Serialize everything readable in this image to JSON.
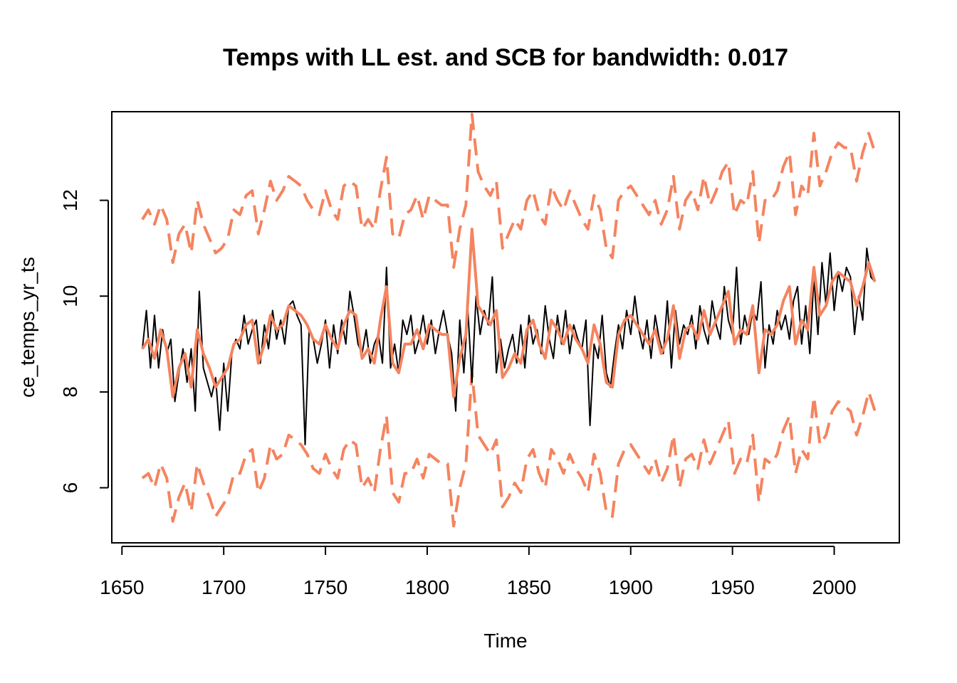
{
  "chart_data": {
    "type": "line",
    "title": "Temps with LL est. and SCB for bandwidth: 0.017",
    "xlabel": "Time",
    "ylabel": "ce_temps_yr_ts",
    "xlim": [
      1645,
      2032
    ],
    "ylim": [
      4.85,
      13.85
    ],
    "x_ticks": [
      1650,
      1700,
      1750,
      1800,
      1850,
      1900,
      1950,
      2000
    ],
    "y_ticks": [
      6,
      8,
      10,
      12
    ],
    "grid": false,
    "legend": "none",
    "colors": {
      "observed": "#000000",
      "estimate": "#f4845f",
      "band": "#f4845f"
    },
    "series": [
      {
        "role": "observed",
        "style": "solid-thin",
        "x": [
          1660,
          1662,
          1664,
          1666,
          1668,
          1670,
          1672,
          1674,
          1676,
          1678,
          1680,
          1682,
          1684,
          1686,
          1688,
          1690,
          1692,
          1694,
          1696,
          1698,
          1700,
          1702,
          1704,
          1706,
          1708,
          1710,
          1712,
          1714,
          1716,
          1718,
          1720,
          1722,
          1724,
          1726,
          1728,
          1730,
          1732,
          1734,
          1736,
          1738,
          1740,
          1742,
          1744,
          1746,
          1748,
          1750,
          1752,
          1754,
          1756,
          1758,
          1760,
          1762,
          1764,
          1766,
          1768,
          1770,
          1772,
          1774,
          1776,
          1778,
          1780,
          1782,
          1784,
          1786,
          1788,
          1790,
          1792,
          1794,
          1796,
          1798,
          1800,
          1802,
          1804,
          1806,
          1808,
          1810,
          1812,
          1814,
          1816,
          1818,
          1820,
          1822,
          1824,
          1826,
          1828,
          1830,
          1832,
          1834,
          1836,
          1838,
          1840,
          1842,
          1844,
          1846,
          1848,
          1850,
          1852,
          1854,
          1856,
          1858,
          1860,
          1862,
          1864,
          1866,
          1868,
          1870,
          1872,
          1874,
          1876,
          1878,
          1880,
          1882,
          1884,
          1886,
          1888,
          1890,
          1892,
          1894,
          1896,
          1898,
          1900,
          1902,
          1904,
          1906,
          1908,
          1910,
          1912,
          1914,
          1916,
          1918,
          1920,
          1922,
          1924,
          1926,
          1928,
          1930,
          1932,
          1934,
          1936,
          1938,
          1940,
          1942,
          1944,
          1946,
          1948,
          1950,
          1952,
          1954,
          1956,
          1958,
          1960,
          1962,
          1964,
          1966,
          1968,
          1970,
          1972,
          1974,
          1976,
          1978,
          1980,
          1982,
          1984,
          1986,
          1988,
          1990,
          1992,
          1994,
          1996,
          1998,
          2000,
          2002,
          2004,
          2006,
          2008,
          2010,
          2012,
          2014,
          2016,
          2018,
          2020
        ],
        "y": [
          8.9,
          9.7,
          8.5,
          9.6,
          8.5,
          9.3,
          8.8,
          9.1,
          7.8,
          8.4,
          8.9,
          8.2,
          8.9,
          7.6,
          10.1,
          8.5,
          8.2,
          7.9,
          8.3,
          7.2,
          8.6,
          7.6,
          8.8,
          9.1,
          8.9,
          9.6,
          9.0,
          9.3,
          9.5,
          8.6,
          9.4,
          8.9,
          9.7,
          9.1,
          9.5,
          9.0,
          9.8,
          9.9,
          9.6,
          9.4,
          6.9,
          9.3,
          9.1,
          8.6,
          9.0,
          9.5,
          8.5,
          9.4,
          8.8,
          9.5,
          9.0,
          10.1,
          9.6,
          9.0,
          8.8,
          9.3,
          8.6,
          9.0,
          9.2,
          8.6,
          10.6,
          8.5,
          9.0,
          8.4,
          9.5,
          9.2,
          9.6,
          8.8,
          9.1,
          9.6,
          9.0,
          9.5,
          8.8,
          9.3,
          9.7,
          9.2,
          8.8,
          7.6,
          9.5,
          8.4,
          9.7,
          8.2,
          10.0,
          9.2,
          9.7,
          9.4,
          10.4,
          8.4,
          9.1,
          8.5,
          8.9,
          9.2,
          8.6,
          9.4,
          8.5,
          9.6,
          9.0,
          9.3,
          8.8,
          9.8,
          9.1,
          8.7,
          9.6,
          9.0,
          9.7,
          8.8,
          9.4,
          9.1,
          8.9,
          9.5,
          7.3,
          9.0,
          8.7,
          9.6,
          8.4,
          8.1,
          8.8,
          9.4,
          8.9,
          9.7,
          9.2,
          10.0,
          9.3,
          8.9,
          9.5,
          8.7,
          9.6,
          9.1,
          8.8,
          9.9,
          8.5,
          9.7,
          9.0,
          9.4,
          9.2,
          9.6,
          8.9,
          9.8,
          9.3,
          9.0,
          9.9,
          9.4,
          9.1,
          10.2,
          9.5,
          9.2,
          10.6,
          9.0,
          9.6,
          9.2,
          9.7,
          9.5,
          10.3,
          8.5,
          9.4,
          9.0,
          9.7,
          9.3,
          9.6,
          9.1,
          9.9,
          10.2,
          9.0,
          9.8,
          8.8,
          10.4,
          9.2,
          10.7,
          9.8,
          10.9,
          9.7,
          10.5,
          10.1,
          10.6,
          10.4,
          9.2,
          10.0,
          9.5,
          11.0,
          10.4,
          10.3
        ],
        "stroke_width": 2
      },
      {
        "role": "estimate",
        "style": "solid-thick",
        "x": [
          1660,
          1663,
          1666,
          1669,
          1672,
          1675,
          1678,
          1681,
          1684,
          1687,
          1690,
          1693,
          1696,
          1699,
          1702,
          1705,
          1708,
          1711,
          1714,
          1717,
          1720,
          1723,
          1726,
          1729,
          1732,
          1735,
          1738,
          1741,
          1744,
          1747,
          1750,
          1753,
          1756,
          1759,
          1762,
          1765,
          1768,
          1771,
          1774,
          1777,
          1780,
          1783,
          1786,
          1789,
          1792,
          1795,
          1798,
          1801,
          1804,
          1807,
          1810,
          1813,
          1816,
          1819,
          1822,
          1825,
          1828,
          1831,
          1834,
          1837,
          1840,
          1843,
          1846,
          1849,
          1852,
          1855,
          1858,
          1861,
          1864,
          1867,
          1870,
          1873,
          1876,
          1879,
          1882,
          1885,
          1888,
          1891,
          1894,
          1897,
          1900,
          1903,
          1906,
          1909,
          1912,
          1915,
          1918,
          1921,
          1924,
          1927,
          1930,
          1933,
          1936,
          1939,
          1942,
          1945,
          1948,
          1951,
          1954,
          1957,
          1960,
          1963,
          1966,
          1969,
          1972,
          1975,
          1978,
          1981,
          1984,
          1987,
          1990,
          1993,
          1996,
          1999,
          2002,
          2005,
          2008,
          2011,
          2014,
          2017,
          2020
        ],
        "y": [
          8.9,
          9.1,
          8.7,
          9.3,
          8.9,
          7.9,
          8.5,
          8.8,
          8.1,
          9.3,
          8.8,
          8.5,
          8.1,
          8.3,
          8.5,
          9.0,
          9.1,
          9.4,
          9.5,
          8.6,
          9.0,
          9.6,
          9.3,
          9.4,
          9.8,
          9.7,
          9.6,
          9.4,
          9.1,
          9.0,
          9.4,
          9.1,
          8.9,
          9.4,
          9.7,
          9.6,
          8.7,
          8.9,
          8.6,
          9.5,
          10.2,
          8.6,
          8.4,
          9.0,
          9.0,
          9.3,
          8.9,
          9.4,
          9.3,
          9.2,
          9.2,
          7.9,
          8.7,
          9.2,
          11.4,
          9.8,
          9.6,
          9.4,
          9.7,
          8.3,
          8.5,
          8.8,
          8.6,
          9.3,
          9.5,
          9.0,
          8.7,
          9.5,
          9.3,
          9.0,
          9.4,
          9.1,
          8.9,
          8.6,
          9.4,
          9.0,
          8.2,
          8.1,
          9.2,
          9.5,
          9.6,
          9.4,
          9.2,
          9.0,
          9.3,
          8.8,
          9.1,
          9.8,
          8.7,
          9.3,
          9.4,
          9.1,
          9.7,
          9.2,
          9.5,
          9.8,
          10.1,
          9.0,
          9.3,
          9.2,
          9.8,
          8.4,
          9.3,
          9.2,
          9.4,
          9.9,
          10.2,
          9.0,
          9.5,
          9.3,
          10.6,
          9.6,
          9.8,
          10.3,
          10.5,
          10.4,
          10.3,
          9.8,
          10.2,
          10.7,
          10.3
        ],
        "stroke_width": 4
      },
      {
        "role": "band-upper",
        "style": "dashed",
        "x": [
          1660,
          1663,
          1666,
          1669,
          1672,
          1675,
          1678,
          1681,
          1684,
          1687,
          1690,
          1693,
          1696,
          1699,
          1702,
          1705,
          1708,
          1711,
          1714,
          1717,
          1720,
          1723,
          1726,
          1729,
          1732,
          1735,
          1738,
          1741,
          1744,
          1747,
          1750,
          1753,
          1756,
          1759,
          1762,
          1765,
          1768,
          1771,
          1774,
          1777,
          1780,
          1783,
          1786,
          1789,
          1792,
          1795,
          1798,
          1801,
          1804,
          1807,
          1810,
          1813,
          1816,
          1819,
          1822,
          1825,
          1828,
          1831,
          1834,
          1837,
          1840,
          1843,
          1846,
          1849,
          1852,
          1855,
          1858,
          1861,
          1864,
          1867,
          1870,
          1873,
          1876,
          1879,
          1882,
          1885,
          1888,
          1891,
          1894,
          1897,
          1900,
          1903,
          1906,
          1909,
          1912,
          1915,
          1918,
          1921,
          1924,
          1927,
          1930,
          1933,
          1936,
          1939,
          1942,
          1945,
          1948,
          1951,
          1954,
          1957,
          1960,
          1963,
          1966,
          1969,
          1972,
          1975,
          1978,
          1981,
          1984,
          1987,
          1990,
          1993,
          1996,
          1999,
          2002,
          2005,
          2008,
          2011,
          2014,
          2017,
          2020
        ],
        "y": [
          11.6,
          11.8,
          11.5,
          11.9,
          11.6,
          10.7,
          11.3,
          11.5,
          10.9,
          12.0,
          11.5,
          11.2,
          10.9,
          11.0,
          11.2,
          11.8,
          11.7,
          12.1,
          12.2,
          11.3,
          11.8,
          12.4,
          12.0,
          12.2,
          12.5,
          12.4,
          12.3,
          12.0,
          11.8,
          11.7,
          12.2,
          11.8,
          11.6,
          12.3,
          12.4,
          12.3,
          11.4,
          11.6,
          11.4,
          12.2,
          12.9,
          11.3,
          11.2,
          11.7,
          11.8,
          12.1,
          11.6,
          12.1,
          12.0,
          11.9,
          11.9,
          10.6,
          11.4,
          11.9,
          13.8,
          12.6,
          12.3,
          12.1,
          12.4,
          11.0,
          11.3,
          11.6,
          11.4,
          12.0,
          12.2,
          11.7,
          11.5,
          12.3,
          12.0,
          11.8,
          12.2,
          11.9,
          11.6,
          11.4,
          12.1,
          11.8,
          11.0,
          10.8,
          12.0,
          12.2,
          12.3,
          12.1,
          11.9,
          11.7,
          12.0,
          11.5,
          11.8,
          12.5,
          11.4,
          12.0,
          12.2,
          11.8,
          12.5,
          11.9,
          12.2,
          12.6,
          12.8,
          11.7,
          12.0,
          11.9,
          12.6,
          11.1,
          12.0,
          12.0,
          12.2,
          12.7,
          13.0,
          11.7,
          12.3,
          12.1,
          13.4,
          12.3,
          12.6,
          13.0,
          13.2,
          13.1,
          13.1,
          12.4,
          13.0,
          13.4,
          13.0
        ],
        "stroke_width": 4
      },
      {
        "role": "band-lower",
        "style": "dashed",
        "x": [
          1660,
          1663,
          1666,
          1669,
          1672,
          1675,
          1678,
          1681,
          1684,
          1687,
          1690,
          1693,
          1696,
          1699,
          1702,
          1705,
          1708,
          1711,
          1714,
          1717,
          1720,
          1723,
          1726,
          1729,
          1732,
          1735,
          1738,
          1741,
          1744,
          1747,
          1750,
          1753,
          1756,
          1759,
          1762,
          1765,
          1768,
          1771,
          1774,
          1777,
          1780,
          1783,
          1786,
          1789,
          1792,
          1795,
          1798,
          1801,
          1804,
          1807,
          1810,
          1813,
          1816,
          1819,
          1822,
          1825,
          1828,
          1831,
          1834,
          1837,
          1840,
          1843,
          1846,
          1849,
          1852,
          1855,
          1858,
          1861,
          1864,
          1867,
          1870,
          1873,
          1876,
          1879,
          1882,
          1885,
          1888,
          1891,
          1894,
          1897,
          1900,
          1903,
          1906,
          1909,
          1912,
          1915,
          1918,
          1921,
          1924,
          1927,
          1930,
          1933,
          1936,
          1939,
          1942,
          1945,
          1948,
          1951,
          1954,
          1957,
          1960,
          1963,
          1966,
          1969,
          1972,
          1975,
          1978,
          1981,
          1984,
          1987,
          1990,
          1993,
          1996,
          1999,
          2002,
          2005,
          2008,
          2011,
          2014,
          2017,
          2020
        ],
        "y": [
          6.2,
          6.3,
          6.0,
          6.5,
          6.2,
          5.3,
          5.8,
          6.1,
          5.5,
          6.5,
          6.1,
          5.8,
          5.4,
          5.6,
          5.8,
          6.3,
          6.3,
          6.7,
          6.8,
          5.9,
          6.2,
          6.9,
          6.6,
          6.7,
          7.1,
          7.0,
          6.9,
          6.7,
          6.4,
          6.3,
          6.7,
          6.4,
          6.2,
          6.8,
          7.0,
          6.9,
          6.0,
          6.2,
          5.9,
          6.8,
          7.5,
          5.9,
          5.7,
          6.3,
          6.3,
          6.6,
          6.2,
          6.7,
          6.6,
          6.5,
          6.5,
          5.2,
          6.0,
          6.5,
          8.4,
          7.1,
          6.9,
          6.7,
          7.0,
          5.6,
          5.8,
          6.1,
          5.9,
          6.6,
          6.8,
          6.3,
          6.0,
          6.8,
          6.6,
          6.3,
          6.7,
          6.4,
          6.2,
          5.9,
          6.7,
          6.3,
          5.5,
          5.4,
          6.5,
          6.8,
          6.9,
          6.7,
          6.5,
          6.3,
          6.6,
          6.1,
          6.4,
          7.1,
          6.0,
          6.6,
          6.7,
          6.4,
          7.0,
          6.5,
          6.8,
          7.1,
          7.4,
          6.3,
          6.6,
          6.5,
          7.1,
          5.7,
          6.6,
          6.5,
          6.7,
          7.2,
          7.5,
          6.3,
          6.8,
          6.6,
          7.9,
          6.9,
          7.1,
          7.6,
          7.8,
          7.7,
          7.6,
          7.1,
          7.5,
          8.0,
          7.6
        ],
        "stroke_width": 4
      }
    ]
  }
}
